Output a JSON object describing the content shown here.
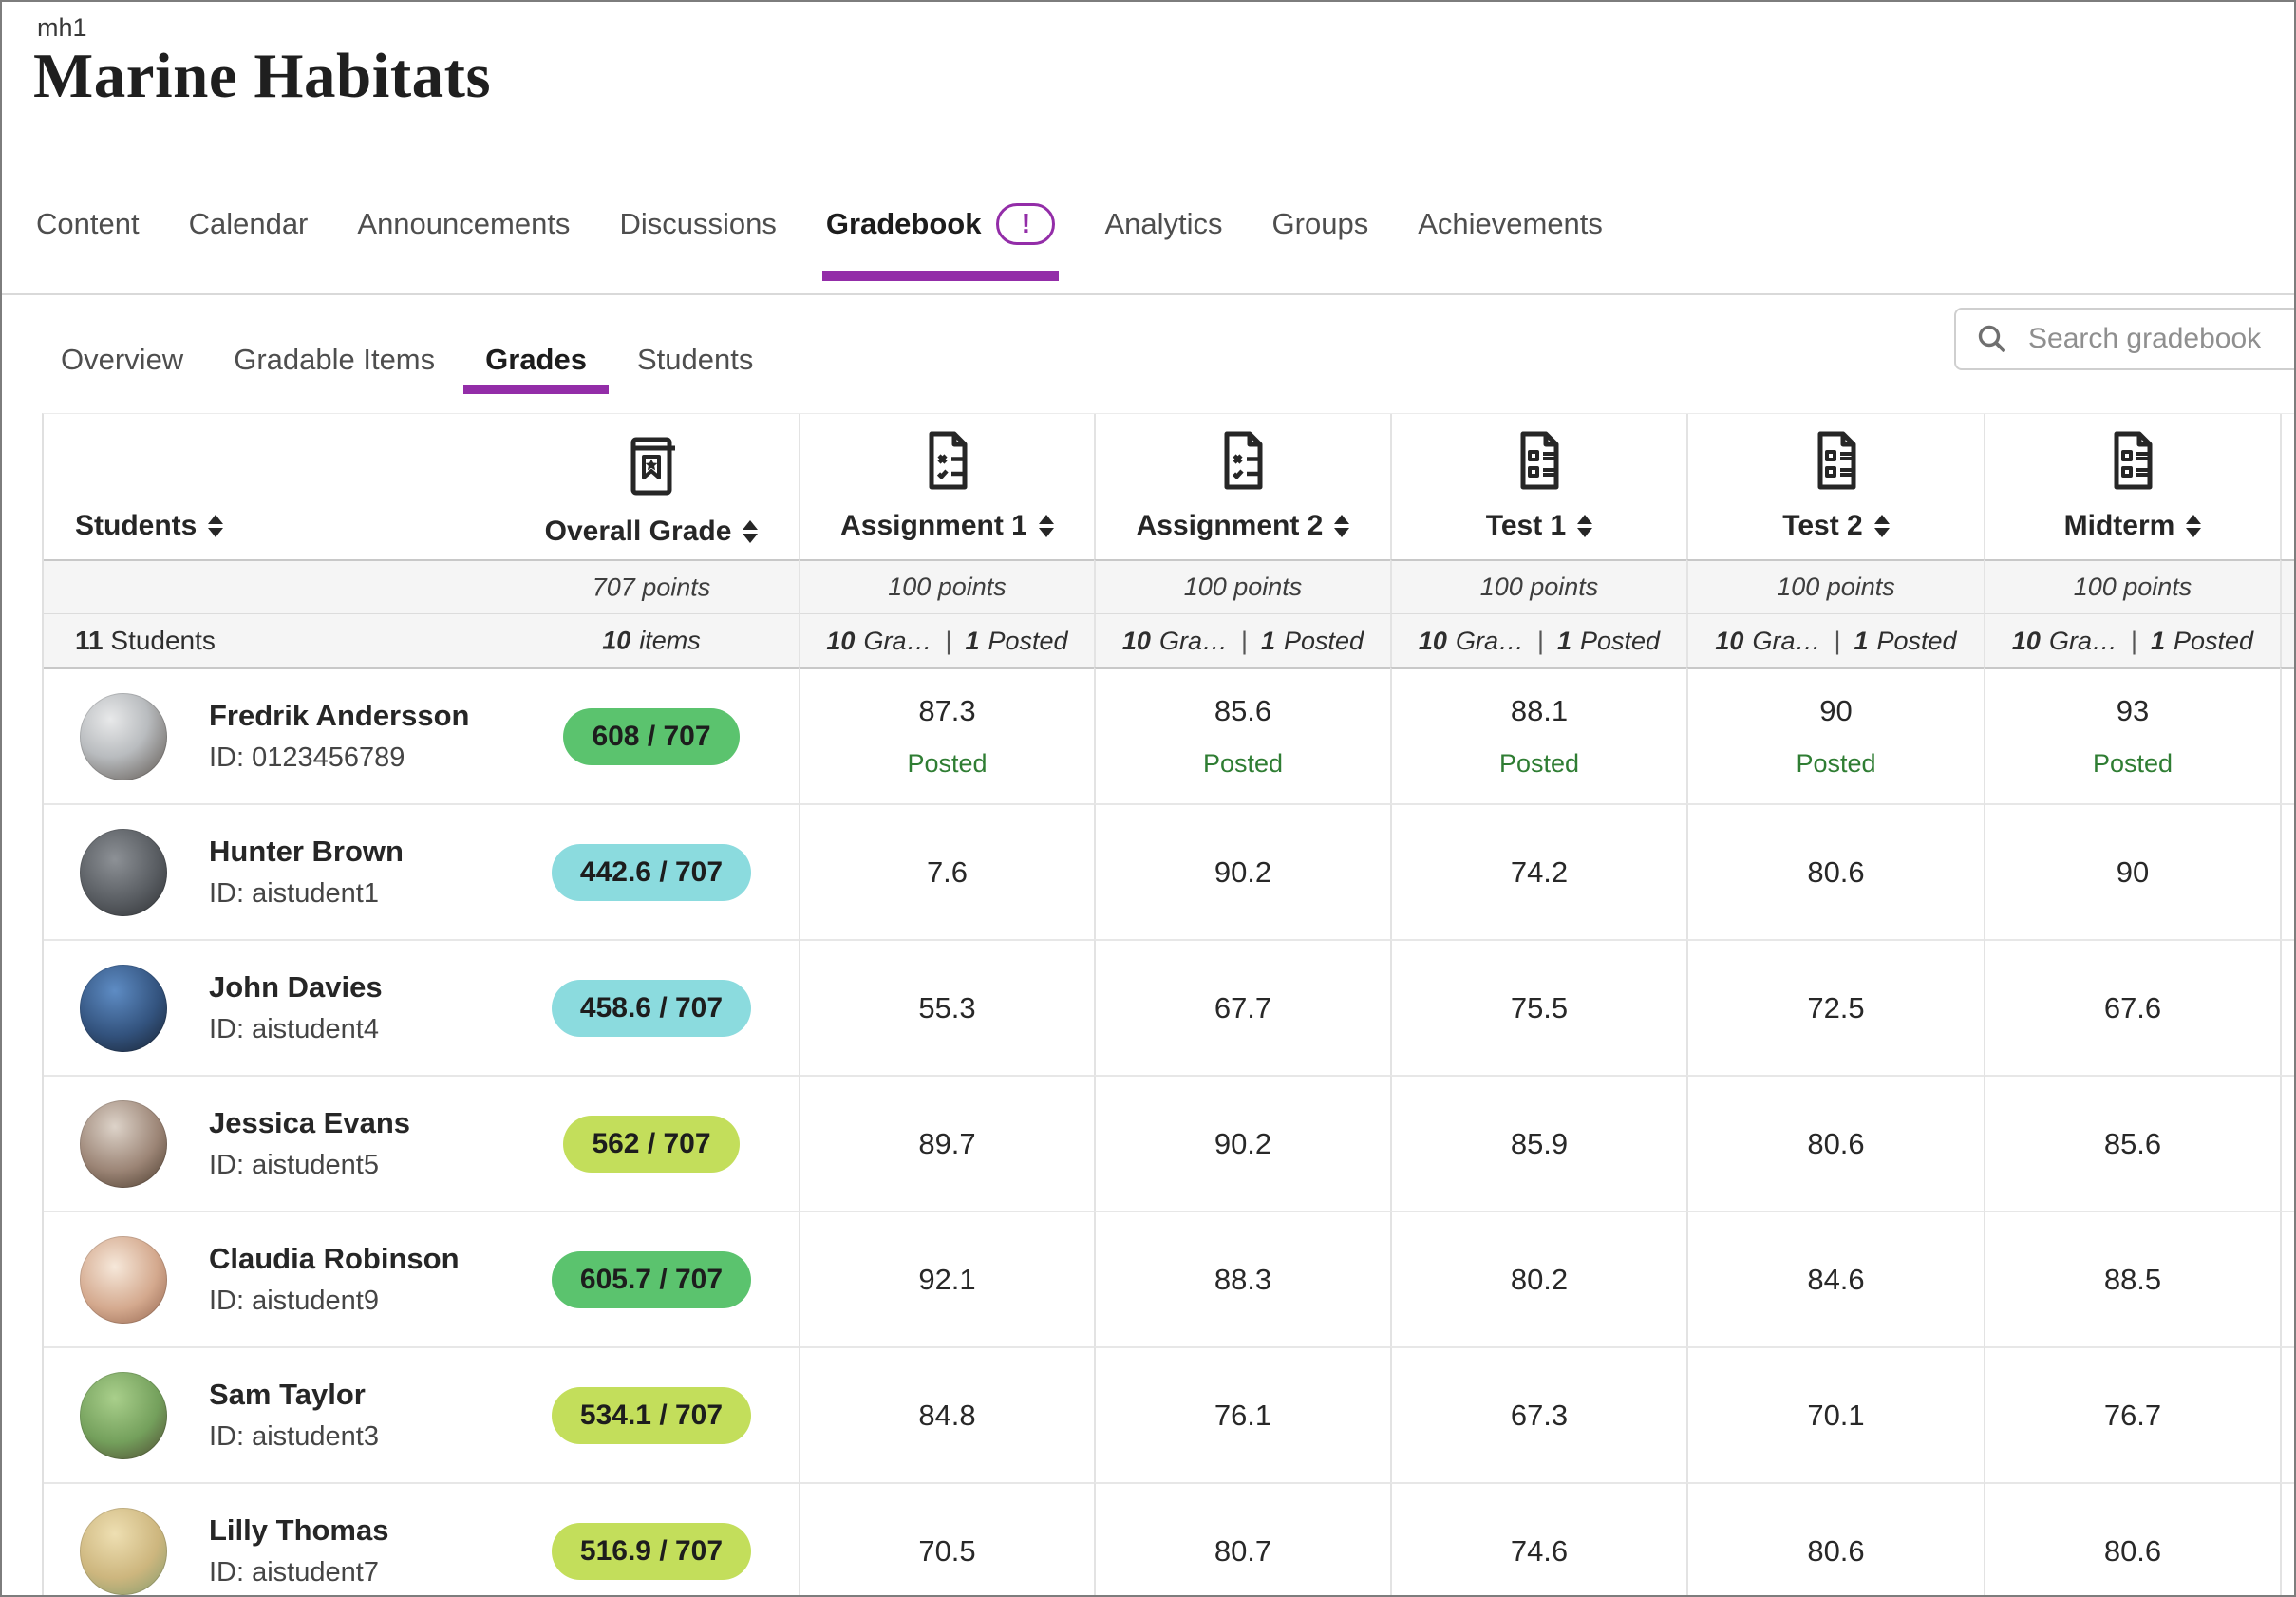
{
  "header": {
    "course_id": "mh1",
    "course_title": "Marine Habitats"
  },
  "nav": {
    "items": [
      {
        "label": "Content",
        "active": false
      },
      {
        "label": "Calendar",
        "active": false
      },
      {
        "label": "Announcements",
        "active": false
      },
      {
        "label": "Discussions",
        "active": false
      },
      {
        "label": "Gradebook",
        "active": true,
        "alert": "!"
      },
      {
        "label": "Analytics",
        "active": false
      },
      {
        "label": "Groups",
        "active": false
      },
      {
        "label": "Achievements",
        "active": false
      }
    ]
  },
  "subnav": {
    "items": [
      {
        "label": "Overview",
        "active": false
      },
      {
        "label": "Gradable Items",
        "active": false
      },
      {
        "label": "Grades",
        "active": true
      },
      {
        "label": "Students",
        "active": false
      }
    ],
    "search_placeholder": "Search gradebook"
  },
  "table": {
    "students_col": {
      "header": "Students",
      "count": "11",
      "count_label": "Students"
    },
    "overall_col": {
      "header": "Overall Grade",
      "icon": "award-icon",
      "points": "707 points",
      "items_count": "10",
      "items_label": "items"
    },
    "grade_columns": [
      {
        "header": "Assignment 1",
        "icon": "assignment-icon",
        "points": "100 points",
        "graded_count": "10",
        "graded_label": "Gra…",
        "divider": "|",
        "posted_count": "1",
        "posted_label": "Posted"
      },
      {
        "header": "Assignment 2",
        "icon": "assignment-icon",
        "points": "100 points",
        "graded_count": "10",
        "graded_label": "Gra…",
        "divider": "|",
        "posted_count": "1",
        "posted_label": "Posted"
      },
      {
        "header": "Test 1",
        "icon": "test-icon",
        "points": "100 points",
        "graded_count": "10",
        "graded_label": "Gra…",
        "divider": "|",
        "posted_count": "1",
        "posted_label": "Posted"
      },
      {
        "header": "Test 2",
        "icon": "test-icon",
        "points": "100 points",
        "graded_count": "10",
        "graded_label": "Gra…",
        "divider": "|",
        "posted_count": "1",
        "posted_label": "Posted"
      },
      {
        "header": "Midterm",
        "icon": "test-icon",
        "points": "100 points",
        "graded_count": "10",
        "graded_label": "Gra…",
        "divider": "|",
        "posted_count": "1",
        "posted_label": "Posted"
      }
    ],
    "posted_label": "Posted",
    "rows": [
      {
        "name": "Fredrik Andersson",
        "id": "ID: 0123456789",
        "overall": "608 / 707",
        "band": "green",
        "posted": true,
        "scores": [
          "87.3",
          "85.6",
          "88.1",
          "90",
          "93"
        ]
      },
      {
        "name": "Hunter Brown",
        "id": "ID: aistudent1",
        "overall": "442.6 / 707",
        "band": "cyan",
        "posted": false,
        "scores": [
          "7.6",
          "90.2",
          "74.2",
          "80.6",
          "90"
        ]
      },
      {
        "name": "John Davies",
        "id": "ID: aistudent4",
        "overall": "458.6 / 707",
        "band": "cyan",
        "posted": false,
        "scores": [
          "55.3",
          "67.7",
          "75.5",
          "72.5",
          "67.6"
        ]
      },
      {
        "name": "Jessica Evans",
        "id": "ID: aistudent5",
        "overall": "562 / 707",
        "band": "lime",
        "posted": false,
        "scores": [
          "89.7",
          "90.2",
          "85.9",
          "80.6",
          "85.6"
        ]
      },
      {
        "name": "Claudia Robinson",
        "id": "ID: aistudent9",
        "overall": "605.7 / 707",
        "band": "green",
        "posted": false,
        "scores": [
          "92.1",
          "88.3",
          "80.2",
          "84.6",
          "88.5"
        ]
      },
      {
        "name": "Sam Taylor",
        "id": "ID: aistudent3",
        "overall": "534.1 / 707",
        "band": "lime",
        "posted": false,
        "scores": [
          "84.8",
          "76.1",
          "67.3",
          "70.1",
          "76.7"
        ]
      },
      {
        "name": "Lilly Thomas",
        "id": "ID: aistudent7",
        "overall": "516.9 / 707",
        "band": "lime",
        "posted": false,
        "scores": [
          "70.5",
          "80.7",
          "74.6",
          "80.6",
          "80.6"
        ]
      }
    ]
  },
  "colors": {
    "accent": "#932da8",
    "posted_green": "#2f7d33",
    "bands": {
      "green": "#5bc36e",
      "cyan": "#8bdbde",
      "lime": "#c3de5b"
    }
  }
}
